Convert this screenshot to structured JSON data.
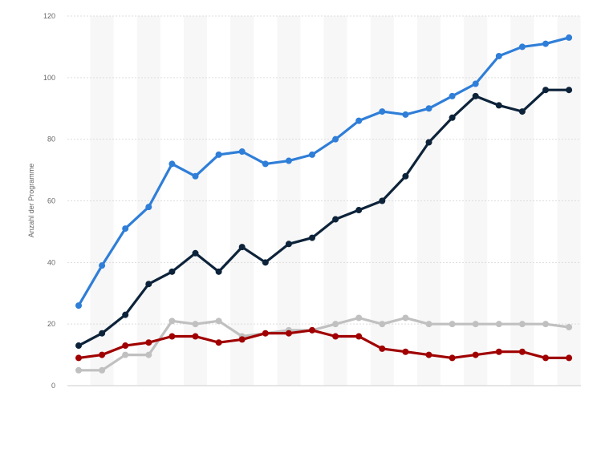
{
  "chart_data": {
    "type": "line",
    "title": "",
    "xlabel": "",
    "ylabel": "Anzahl der Programme",
    "ylim": [
      0,
      120
    ],
    "yticks": [
      "0",
      "20",
      "40",
      "60",
      "80",
      "100",
      "120"
    ],
    "x_count": 22,
    "grid": true,
    "legend": "none",
    "series": [
      {
        "color": "#2f7ed8",
        "values": [
          26,
          39,
          51,
          58,
          72,
          68,
          75,
          76,
          72,
          73,
          75,
          80,
          86,
          89,
          88,
          90,
          94,
          98,
          107,
          110,
          111,
          113
        ]
      },
      {
        "color": "#0d233a",
        "values": [
          13,
          17,
          23,
          33,
          37,
          43,
          37,
          45,
          40,
          46,
          48,
          54,
          57,
          60,
          68,
          79,
          87,
          94,
          91,
          89,
          96,
          96
        ]
      },
      {
        "color": "#c0c0c0",
        "values": [
          5,
          5,
          10,
          10,
          21,
          20,
          21,
          16,
          17,
          18,
          18,
          20,
          22,
          20,
          22,
          20,
          20,
          20,
          20,
          20,
          20,
          19
        ]
      },
      {
        "color": "#a00000",
        "values": [
          9,
          10,
          13,
          14,
          16,
          16,
          14,
          15,
          17,
          17,
          18,
          16,
          16,
          12,
          11,
          10,
          9,
          10,
          11,
          11,
          9,
          9
        ]
      }
    ]
  }
}
